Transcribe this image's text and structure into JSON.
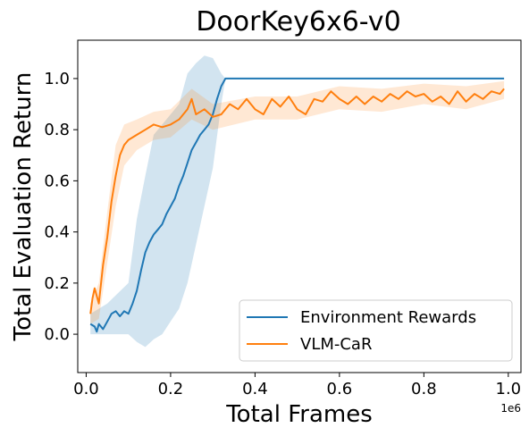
{
  "chart_data": {
    "type": "line",
    "title": "DoorKey6x6-v0",
    "xlabel": "Total Frames",
    "ylabel": "Total Evaluation Return",
    "x_scale_label": "1e6",
    "xlim": [
      -0.02,
      1.03
    ],
    "ylim": [
      -0.15,
      1.15
    ],
    "xticks": [
      0.0,
      0.2,
      0.4,
      0.6,
      0.8,
      1.0
    ],
    "xtick_labels": [
      "0.0",
      "0.2",
      "0.4",
      "0.6",
      "0.8",
      "1.0"
    ],
    "yticks": [
      0.0,
      0.2,
      0.4,
      0.6,
      0.8,
      1.0
    ],
    "ytick_labels": [
      "0.0",
      "0.2",
      "0.4",
      "0.6",
      "0.8",
      "1.0"
    ],
    "grid": false,
    "legend_position": "lower-right",
    "series": [
      {
        "name": "Environment Rewards",
        "color": "#1f77b4",
        "band_color": "#1f77b4",
        "points": [
          [
            0.01,
            0.04
          ],
          [
            0.02,
            0.03
          ],
          [
            0.025,
            0.01
          ],
          [
            0.03,
            0.04
          ],
          [
            0.04,
            0.02
          ],
          [
            0.05,
            0.05
          ],
          [
            0.06,
            0.08
          ],
          [
            0.07,
            0.09
          ],
          [
            0.08,
            0.07
          ],
          [
            0.09,
            0.09
          ],
          [
            0.1,
            0.08
          ],
          [
            0.11,
            0.12
          ],
          [
            0.12,
            0.17
          ],
          [
            0.13,
            0.25
          ],
          [
            0.14,
            0.32
          ],
          [
            0.15,
            0.36
          ],
          [
            0.16,
            0.39
          ],
          [
            0.17,
            0.41
          ],
          [
            0.18,
            0.43
          ],
          [
            0.19,
            0.47
          ],
          [
            0.2,
            0.5
          ],
          [
            0.21,
            0.53
          ],
          [
            0.22,
            0.58
          ],
          [
            0.23,
            0.62
          ],
          [
            0.24,
            0.67
          ],
          [
            0.25,
            0.72
          ],
          [
            0.26,
            0.75
          ],
          [
            0.27,
            0.78
          ],
          [
            0.28,
            0.8
          ],
          [
            0.29,
            0.82
          ],
          [
            0.3,
            0.86
          ],
          [
            0.31,
            0.92
          ],
          [
            0.32,
            0.97
          ],
          [
            0.33,
            1.0
          ],
          [
            0.4,
            1.0
          ],
          [
            0.5,
            1.0
          ],
          [
            0.6,
            1.0
          ],
          [
            0.7,
            1.0
          ],
          [
            0.8,
            1.0
          ],
          [
            0.9,
            1.0
          ],
          [
            0.99,
            1.0
          ]
        ],
        "band": [
          [
            0.01,
            0.0,
            0.08
          ],
          [
            0.05,
            0.0,
            0.12
          ],
          [
            0.1,
            0.0,
            0.2
          ],
          [
            0.12,
            -0.03,
            0.45
          ],
          [
            0.14,
            -0.05,
            0.62
          ],
          [
            0.16,
            -0.02,
            0.78
          ],
          [
            0.18,
            0.0,
            0.82
          ],
          [
            0.2,
            0.05,
            0.86
          ],
          [
            0.22,
            0.1,
            0.9
          ],
          [
            0.24,
            0.2,
            1.02
          ],
          [
            0.26,
            0.35,
            1.06
          ],
          [
            0.28,
            0.5,
            1.09
          ],
          [
            0.3,
            0.65,
            1.08
          ],
          [
            0.32,
            0.9,
            1.02
          ],
          [
            0.33,
            1.0,
            1.0
          ],
          [
            0.99,
            1.0,
            1.0
          ]
        ]
      },
      {
        "name": "VLM-CaR",
        "color": "#ff7f0e",
        "band_color": "#ff7f0e",
        "points": [
          [
            0.01,
            0.08
          ],
          [
            0.015,
            0.14
          ],
          [
            0.02,
            0.18
          ],
          [
            0.03,
            0.12
          ],
          [
            0.04,
            0.27
          ],
          [
            0.05,
            0.38
          ],
          [
            0.06,
            0.52
          ],
          [
            0.07,
            0.62
          ],
          [
            0.08,
            0.7
          ],
          [
            0.09,
            0.74
          ],
          [
            0.1,
            0.76
          ],
          [
            0.12,
            0.78
          ],
          [
            0.14,
            0.8
          ],
          [
            0.16,
            0.82
          ],
          [
            0.18,
            0.81
          ],
          [
            0.2,
            0.82
          ],
          [
            0.22,
            0.84
          ],
          [
            0.24,
            0.88
          ],
          [
            0.25,
            0.92
          ],
          [
            0.26,
            0.86
          ],
          [
            0.28,
            0.88
          ],
          [
            0.3,
            0.85
          ],
          [
            0.32,
            0.86
          ],
          [
            0.34,
            0.9
          ],
          [
            0.36,
            0.88
          ],
          [
            0.38,
            0.92
          ],
          [
            0.4,
            0.88
          ],
          [
            0.42,
            0.86
          ],
          [
            0.44,
            0.92
          ],
          [
            0.46,
            0.89
          ],
          [
            0.48,
            0.93
          ],
          [
            0.5,
            0.88
          ],
          [
            0.52,
            0.86
          ],
          [
            0.54,
            0.92
          ],
          [
            0.56,
            0.91
          ],
          [
            0.58,
            0.95
          ],
          [
            0.6,
            0.92
          ],
          [
            0.62,
            0.9
          ],
          [
            0.64,
            0.93
          ],
          [
            0.66,
            0.9
          ],
          [
            0.68,
            0.93
          ],
          [
            0.7,
            0.91
          ],
          [
            0.72,
            0.94
          ],
          [
            0.74,
            0.92
          ],
          [
            0.76,
            0.95
          ],
          [
            0.78,
            0.93
          ],
          [
            0.8,
            0.94
          ],
          [
            0.82,
            0.91
          ],
          [
            0.84,
            0.93
          ],
          [
            0.86,
            0.9
          ],
          [
            0.88,
            0.95
          ],
          [
            0.9,
            0.91
          ],
          [
            0.92,
            0.94
          ],
          [
            0.94,
            0.92
          ],
          [
            0.96,
            0.95
          ],
          [
            0.98,
            0.94
          ],
          [
            0.99,
            0.96
          ]
        ],
        "band": [
          [
            0.01,
            0.04,
            0.12
          ],
          [
            0.03,
            0.06,
            0.2
          ],
          [
            0.05,
            0.28,
            0.48
          ],
          [
            0.07,
            0.5,
            0.74
          ],
          [
            0.09,
            0.66,
            0.82
          ],
          [
            0.12,
            0.72,
            0.84
          ],
          [
            0.16,
            0.76,
            0.87
          ],
          [
            0.2,
            0.77,
            0.88
          ],
          [
            0.25,
            0.84,
            0.96
          ],
          [
            0.3,
            0.8,
            0.9
          ],
          [
            0.4,
            0.84,
            0.93
          ],
          [
            0.5,
            0.84,
            0.93
          ],
          [
            0.6,
            0.88,
            0.97
          ],
          [
            0.7,
            0.87,
            0.96
          ],
          [
            0.8,
            0.9,
            0.98
          ],
          [
            0.9,
            0.88,
            0.97
          ],
          [
            0.99,
            0.92,
            0.99
          ]
        ]
      }
    ]
  }
}
